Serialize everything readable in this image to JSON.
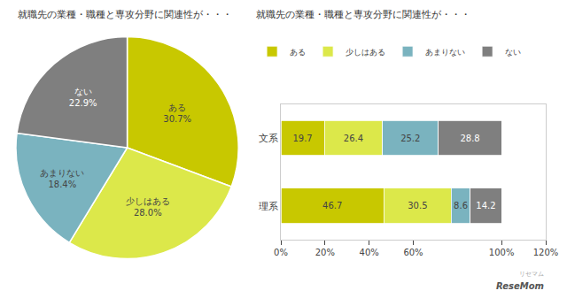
{
  "chart_data": [
    {
      "type": "pie",
      "title": "就職先の業種・職種と専攻分野に関連性が・・・",
      "categories": [
        "ある",
        "少しはある",
        "あまりない",
        "ない"
      ],
      "values": [
        30.7,
        28.0,
        18.4,
        22.9
      ],
      "value_labels": [
        "ある\n30.7%",
        "少しはある\n28.0%",
        "あまりない\n18.4%",
        "ない\n22.9%"
      ],
      "colors": [
        "#c8c800",
        "#dce84a",
        "#7ab3bf",
        "#7f7f7f"
      ],
      "data_labels": true
    },
    {
      "type": "bar",
      "title": "就職先の業種・職種と専攻分野に関連性が・・・",
      "orientation": "horizontal",
      "stacked": true,
      "categories": [
        "文系",
        "理系"
      ],
      "series": [
        {
          "name": "ある",
          "color": "#c8c800",
          "values": [
            19.7,
            46.7
          ]
        },
        {
          "name": "少しはある",
          "color": "#dce84a",
          "values": [
            26.4,
            30.5
          ]
        },
        {
          "name": "あまりない",
          "color": "#7ab3bf",
          "values": [
            25.2,
            8.6
          ]
        },
        {
          "name": "ない",
          "color": "#7f7f7f",
          "values": [
            28.8,
            14.2
          ]
        }
      ],
      "xlim": [
        0,
        120
      ],
      "xticks": [
        {
          "value": 0,
          "label": "0%"
        },
        {
          "value": 20,
          "label": "20%"
        },
        {
          "value": 40,
          "label": "40%"
        },
        {
          "value": 60,
          "label": "60%"
        },
        {
          "value": 100,
          "label": "100%"
        },
        {
          "value": 120,
          "label": "120%"
        }
      ],
      "data_labels": true,
      "legend": "upper left",
      "grid": false,
      "annotations": [
        "ReseMom",
        "リセマム"
      ]
    }
  ]
}
